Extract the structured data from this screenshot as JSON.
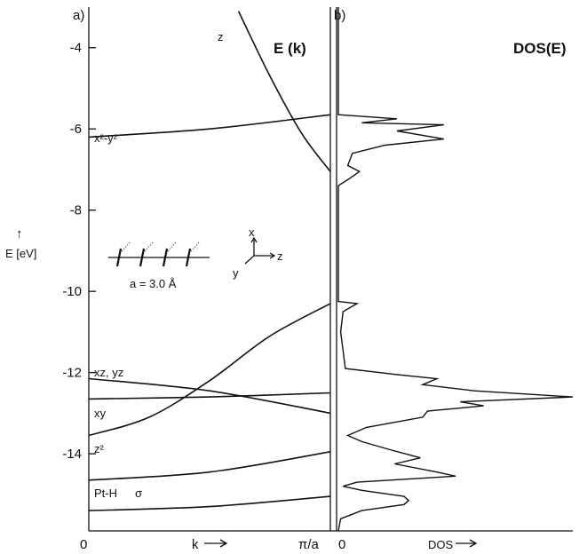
{
  "chart_data": [
    {
      "panel": "a)",
      "type": "line",
      "title": "E (k)",
      "ylabel": "E [eV]",
      "y_arrow": "↑",
      "xlabel": "k",
      "x_tick_left": "0",
      "x_tick_right": "π/a",
      "ylim": [
        -15.9,
        -3.0
      ],
      "xlim": [
        0,
        1
      ],
      "y_ticks": [
        -4,
        -6,
        -8,
        -10,
        -12,
        -14
      ],
      "y_tick_labels": [
        "-4",
        "-6",
        "-8",
        "-10",
        "-12",
        "-14"
      ],
      "series": [
        {
          "name": "z",
          "x": [
            0.62,
            0.75,
            0.88,
            1.0
          ],
          "y": [
            -3.1,
            -4.7,
            -6.1,
            -7.05
          ]
        },
        {
          "name": "x²-y²",
          "x": [
            0,
            0.5,
            1.0
          ],
          "y": [
            -6.2,
            -6.0,
            -5.65
          ]
        },
        {
          "name": "",
          "x": [
            0,
            0.25,
            0.5,
            0.75,
            1.0
          ],
          "y": [
            -13.55,
            -13.1,
            -12.2,
            -11.1,
            -10.3
          ]
        },
        {
          "name": "xz, yz",
          "x": [
            0,
            0.5,
            1.0
          ],
          "y": [
            -12.15,
            -12.45,
            -13.0
          ]
        },
        {
          "name": "xy",
          "x": [
            0,
            0.5,
            1.0
          ],
          "y": [
            -12.65,
            -12.6,
            -12.5
          ]
        },
        {
          "name": "z²",
          "x": [
            0,
            0.5,
            1.0
          ],
          "y": [
            -14.65,
            -14.45,
            -13.95
          ]
        },
        {
          "name": "",
          "x": [
            0,
            0.5,
            1.0
          ],
          "y": [
            -15.4,
            -15.3,
            -15.05
          ]
        }
      ],
      "band_label_pt_h": "Pt-H",
      "band_label_sigma": "σ",
      "inset": {
        "lattice_label": "a = 3.0 Å",
        "axes": [
          "x",
          "y",
          "z"
        ]
      }
    },
    {
      "panel": "b)",
      "type": "line",
      "title": "DOS(E)",
      "xlabel": "DOS",
      "x_tick_left": "0",
      "ylim": [
        -15.9,
        -3.0
      ],
      "xlim": [
        0,
        1
      ],
      "dos_profile": [
        [
          -5.65,
          0.0
        ],
        [
          -5.75,
          0.25
        ],
        [
          -5.85,
          0.1
        ],
        [
          -5.9,
          0.45
        ],
        [
          -6.05,
          0.25
        ],
        [
          -6.25,
          0.45
        ],
        [
          -6.4,
          0.2
        ],
        [
          -6.6,
          0.06
        ],
        [
          -6.9,
          0.04
        ],
        [
          -7.05,
          0.09
        ],
        [
          -7.25,
          0.04
        ],
        [
          -7.4,
          0.0
        ],
        [
          -10.25,
          0.0
        ],
        [
          -10.3,
          0.08
        ],
        [
          -10.4,
          0.05
        ],
        [
          -10.5,
          0.02
        ],
        [
          -11.0,
          0.01
        ],
        [
          -11.9,
          0.03
        ],
        [
          -12.05,
          0.25
        ],
        [
          -12.15,
          0.42
        ],
        [
          -12.3,
          0.36
        ],
        [
          -12.45,
          0.58
        ],
        [
          -12.6,
          1.0
        ],
        [
          -12.72,
          0.52
        ],
        [
          -12.82,
          0.62
        ],
        [
          -12.95,
          0.38
        ],
        [
          -13.1,
          0.36
        ],
        [
          -13.35,
          0.12
        ],
        [
          -13.55,
          0.04
        ],
        [
          -13.7,
          0.1
        ],
        [
          -13.9,
          0.22
        ],
        [
          -14.1,
          0.35
        ],
        [
          -14.25,
          0.24
        ],
        [
          -14.45,
          0.42
        ],
        [
          -14.55,
          0.5
        ],
        [
          -14.7,
          0.08
        ],
        [
          -14.8,
          0.02
        ],
        [
          -14.9,
          0.1
        ],
        [
          -15.05,
          0.28
        ],
        [
          -15.15,
          0.3
        ],
        [
          -15.25,
          0.28
        ],
        [
          -15.4,
          0.1
        ],
        [
          -15.6,
          0.01
        ]
      ]
    }
  ]
}
